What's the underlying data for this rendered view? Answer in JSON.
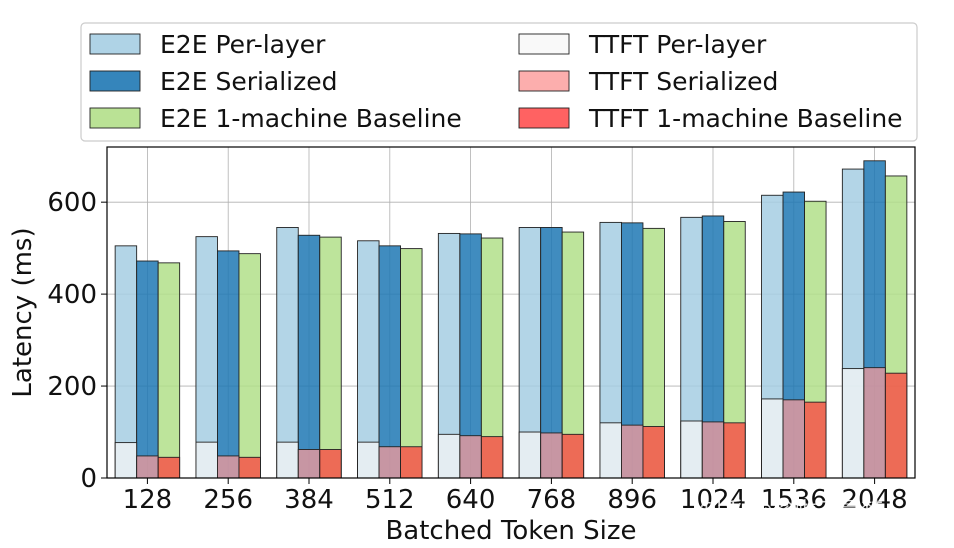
{
  "chart_data": {
    "type": "bar",
    "xlabel": "Batched Token Size",
    "ylabel": "Latency (ms)",
    "ylim": [
      0,
      720
    ],
    "yticks": [
      0,
      200,
      400,
      600
    ],
    "grid": true,
    "legend_position": "top",
    "categories": [
      "128",
      "256",
      "384",
      "512",
      "640",
      "768",
      "896",
      "1024",
      "1536",
      "2048"
    ],
    "series": [
      {
        "name": "E2E Per-layer",
        "color": "#a6cee3",
        "group": "per-layer",
        "layer": "e2e",
        "values": [
          505,
          525,
          545,
          516,
          532,
          545,
          556,
          567,
          615,
          672
        ]
      },
      {
        "name": "E2E Serialized",
        "color": "#1f78b4",
        "group": "serialized",
        "layer": "e2e",
        "values": [
          472,
          494,
          528,
          505,
          531,
          545,
          555,
          570,
          622,
          690
        ]
      },
      {
        "name": "E2E 1-machine Baseline",
        "color": "#b2df8a",
        "group": "baseline",
        "layer": "e2e",
        "values": [
          468,
          488,
          524,
          499,
          522,
          535,
          543,
          558,
          602,
          657
        ]
      },
      {
        "name": "TTFT Per-layer",
        "color": "#f7f7f7",
        "group": "per-layer",
        "layer": "ttft",
        "values": [
          77,
          78,
          78,
          78,
          95,
          100,
          120,
          124,
          172,
          238
        ]
      },
      {
        "name": "TTFT Serialized",
        "color": "#fb9a99",
        "group": "serialized",
        "layer": "ttft",
        "values": [
          48,
          48,
          62,
          68,
          92,
          98,
          115,
          122,
          170,
          240
        ]
      },
      {
        "name": "TTFT 1-machine Baseline",
        "color": "#ff3b3b",
        "group": "baseline",
        "layer": "ttft",
        "values": [
          45,
          45,
          62,
          68,
          90,
          95,
          112,
          120,
          165,
          228
        ]
      }
    ]
  },
  "watermark": "知乎 @珍啦不是梦"
}
